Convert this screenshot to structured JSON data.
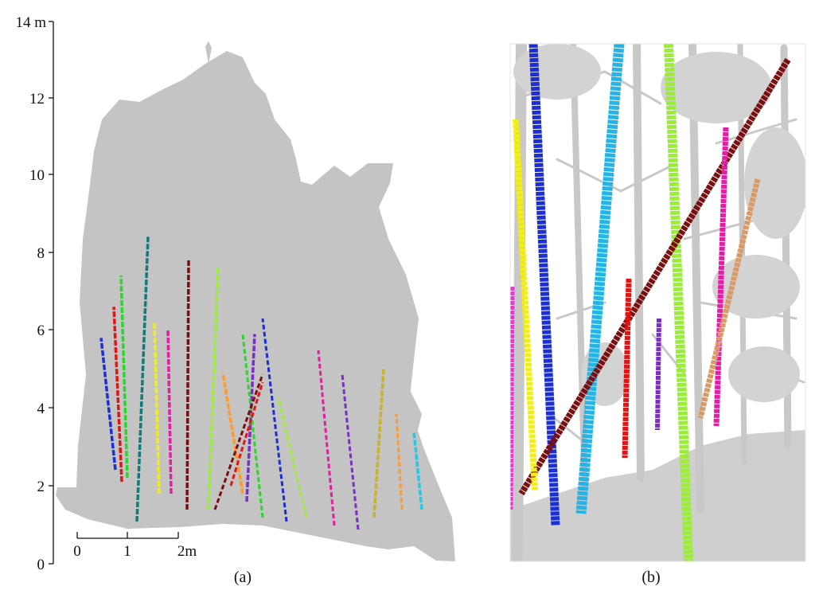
{
  "panel_a": {
    "y_axis": {
      "ticks": [
        "0",
        "2",
        "4",
        "6",
        "8",
        "10",
        "12"
      ],
      "top_label": "14 m"
    },
    "scale_bar": {
      "labels": [
        "0",
        "1",
        "2m"
      ]
    },
    "caption": "(a)",
    "stems": [
      {
        "color": "#1b2fd6",
        "h": 5.8
      },
      {
        "color": "#e01616",
        "h": 6.6
      },
      {
        "color": "#2ad62a",
        "h": 7.4
      },
      {
        "color": "#127a7a",
        "h": 8.4
      },
      {
        "color": "#f2ee1a",
        "h": 6.2
      },
      {
        "color": "#e21fa0",
        "h": 6.0
      },
      {
        "color": "#7a0f0f",
        "h": 7.8
      },
      {
        "color": "#ff9a2a",
        "h": 4.9
      },
      {
        "color": "#9aef35",
        "h": 7.6
      },
      {
        "color": "#7b2fc7",
        "h": 5.9
      },
      {
        "color": "#25c8e6",
        "h": 3.4
      },
      {
        "color": "#c7b12d",
        "h": 5.0
      }
    ]
  },
  "panel_b": {
    "caption": "(b)",
    "stems": [
      {
        "color": "#1b2fd6"
      },
      {
        "color": "#25b4e6"
      },
      {
        "color": "#9aef35"
      },
      {
        "color": "#7a0f0f"
      },
      {
        "color": "#f2ee1a"
      },
      {
        "color": "#e21fa0"
      },
      {
        "color": "#e01616"
      },
      {
        "color": "#d99a66"
      },
      {
        "color": "#e63ad6"
      },
      {
        "color": "#7b2fc7"
      }
    ]
  }
}
